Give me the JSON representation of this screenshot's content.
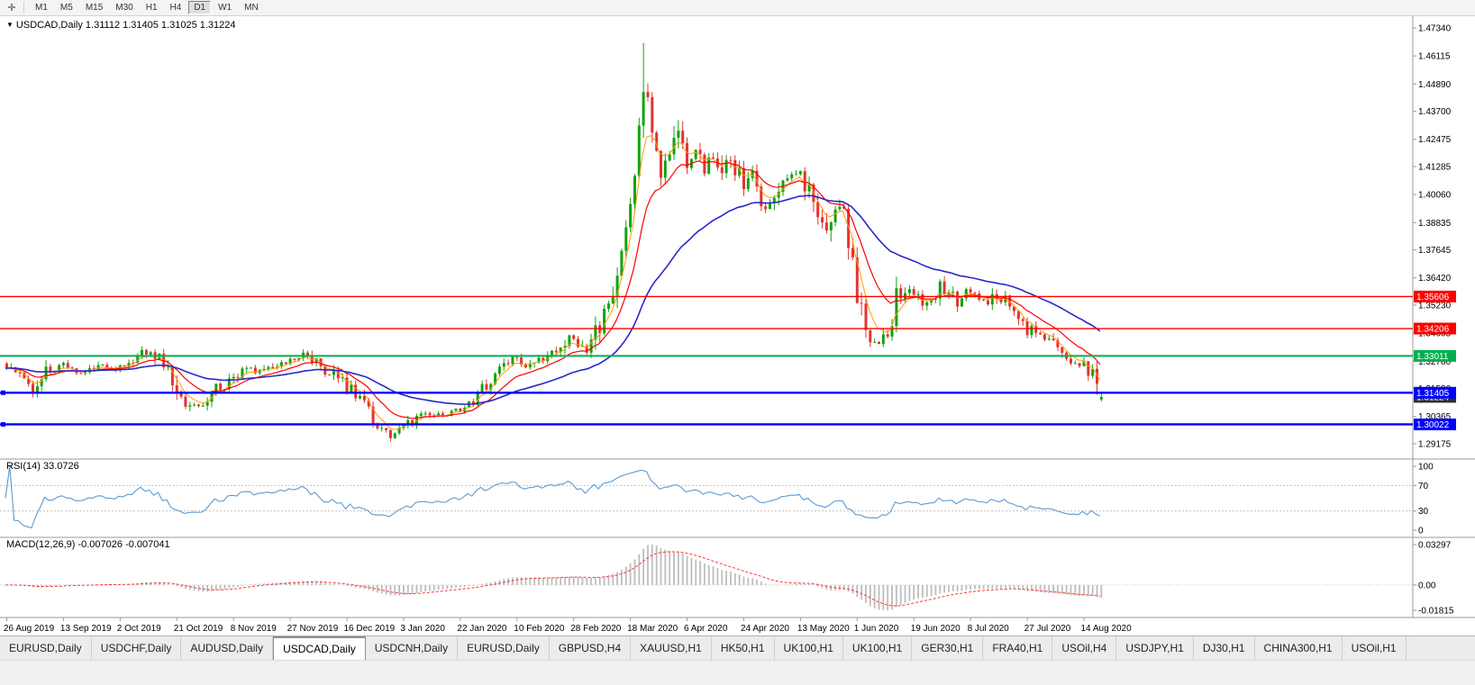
{
  "colors": {
    "candle_up": "#0fa30f",
    "candle_down": "#e53232",
    "ma_fast": "#ff9c00",
    "ma_mid": "#ff0000",
    "ma_slow": "#2929c8",
    "rsi_line": "#5a9bd4",
    "macd_hist": "#bdbdbd",
    "macd_signal": "#ff3333",
    "level_red": "#ff0000",
    "level_green": "#00b050",
    "level_blue": "#0000ff",
    "current_badge": "#2f2f2f",
    "axis_text": "#000000",
    "grid_dash": "#b8b8b8",
    "panel_border": "#9a9a9a"
  },
  "toolbar": {
    "icon": {
      "name": "crosshair-tool-icon",
      "glyph": "✛"
    },
    "timeframes": [
      "M1",
      "M5",
      "M15",
      "M30",
      "H1",
      "H4",
      "D1",
      "W1",
      "MN"
    ],
    "active_timeframe": "D1"
  },
  "info_line": {
    "marker": "▼",
    "text": "USDCAD,Daily 1.31112 1.31405 1.31025 1.31224"
  },
  "rsi_panel": {
    "label": "RSI(14) 33.0726",
    "axis": [
      "100",
      "70",
      "30",
      "0"
    ]
  },
  "macd_panel": {
    "label": "MACD(12,26,9) -0.007026 -0.007041",
    "axis": [
      "0.03297",
      "0.00",
      "-0.01815"
    ]
  },
  "tabs": {
    "items": [
      "EURUSD,Daily",
      "USDCHF,Daily",
      "AUDUSD,Daily",
      "USDCAD,Daily",
      "USDCNH,Daily",
      "EURUSD,Daily",
      "GBPUSD,H4",
      "XAUUSD,H1",
      "HK50,H1",
      "UK100,H1",
      "UK100,H1",
      "GER30,H1",
      "FRA40,H1",
      "USOil,H4",
      "USDJPY,H1",
      "DJ30,H1",
      "CHINA300,H1",
      "USOil,H1"
    ],
    "active_index": 3
  },
  "chart_data": {
    "type": "candlestick",
    "symbol": "USDCAD",
    "timeframe": "Daily",
    "last_candle": {
      "open": 1.31112,
      "high": 1.31405,
      "low": 1.31025,
      "close": 1.31224
    },
    "y_range": {
      "max": 1.4734,
      "min": 1.29175
    },
    "price_axis_labels": [
      "1.47340",
      "1.46115",
      "1.44890",
      "1.43700",
      "1.42475",
      "1.41285",
      "1.40060",
      "1.38835",
      "1.37645",
      "1.36420",
      "1.35230",
      "1.34005",
      "1.32780",
      "1.31590",
      "1.30365",
      "1.29175"
    ],
    "date_labels": [
      "26 Aug 2019",
      "13 Sep 2019",
      "2 Oct 2019",
      "21 Oct 2019",
      "8 Nov 2019",
      "27 Nov 2019",
      "16 Dec 2019",
      "3 Jan 2020",
      "22 Jan 2020",
      "10 Feb 2020",
      "28 Feb 2020",
      "18 Mar 2020",
      "6 Apr 2020",
      "24 Apr 2020",
      "13 May 2020",
      "1 Jun 2020",
      "19 Jun 2020",
      "8 Jul 2020",
      "27 Jul 2020",
      "14 Aug 2020"
    ],
    "bars_per_label": 13,
    "candles_count": 252,
    "seed": 20200814,
    "spike_index": 146,
    "spike_high": 1.4668,
    "price_anchors": [
      [
        0,
        1.3245
      ],
      [
        3,
        1.321
      ],
      [
        6,
        1.3165
      ],
      [
        9,
        1.323
      ],
      [
        13,
        1.3255
      ],
      [
        17,
        1.3235
      ],
      [
        21,
        1.327
      ],
      [
        26,
        1.325
      ],
      [
        30,
        1.33
      ],
      [
        33,
        1.333
      ],
      [
        36,
        1.325
      ],
      [
        39,
        1.312
      ],
      [
        42,
        1.308
      ],
      [
        45,
        1.309
      ],
      [
        48,
        1.315
      ],
      [
        52,
        1.321
      ],
      [
        55,
        1.325
      ],
      [
        58,
        1.323
      ],
      [
        62,
        1.327
      ],
      [
        65,
        1.3285
      ],
      [
        68,
        1.331
      ],
      [
        71,
        1.327
      ],
      [
        74,
        1.323
      ],
      [
        78,
        1.3165
      ],
      [
        81,
        1.311
      ],
      [
        84,
        1.303
      ],
      [
        86,
        1.2975
      ],
      [
        88,
        1.2958
      ],
      [
        91,
        1.299
      ],
      [
        94,
        1.3025
      ],
      [
        97,
        1.305
      ],
      [
        100,
        1.304
      ],
      [
        104,
        1.3065
      ],
      [
        107,
        1.311
      ],
      [
        110,
        1.317
      ],
      [
        113,
        1.323
      ],
      [
        117,
        1.329
      ],
      [
        120,
        1.326
      ],
      [
        123,
        1.329
      ],
      [
        126,
        1.332
      ],
      [
        129,
        1.3385
      ],
      [
        131,
        1.336
      ],
      [
        133,
        1.332
      ],
      [
        135,
        1.3395
      ],
      [
        137,
        1.348
      ],
      [
        139,
        1.357
      ],
      [
        141,
        1.372
      ],
      [
        143,
        1.396
      ],
      [
        144,
        1.408
      ],
      [
        145,
        1.435
      ],
      [
        146,
        1.45
      ],
      [
        147,
        1.442
      ],
      [
        148,
        1.425
      ],
      [
        150,
        1.406
      ],
      [
        152,
        1.418
      ],
      [
        153,
        1.43
      ],
      [
        155,
        1.422
      ],
      [
        156,
        1.416
      ],
      [
        158,
        1.419
      ],
      [
        160,
        1.413
      ],
      [
        162,
        1.418
      ],
      [
        164,
        1.409
      ],
      [
        166,
        1.415
      ],
      [
        169,
        1.406
      ],
      [
        171,
        1.41
      ],
      [
        173,
        1.399
      ],
      [
        175,
        1.395
      ],
      [
        177,
        1.402
      ],
      [
        179,
        1.408
      ],
      [
        182,
        1.411
      ],
      [
        184,
        1.402
      ],
      [
        186,
        1.393
      ],
      [
        188,
        1.386
      ],
      [
        190,
        1.398
      ],
      [
        192,
        1.39
      ],
      [
        194,
        1.368
      ],
      [
        196,
        1.348
      ],
      [
        198,
        1.34
      ],
      [
        200,
        1.337
      ],
      [
        202,
        1.342
      ],
      [
        204,
        1.356
      ],
      [
        206,
        1.361
      ],
      [
        208,
        1.357
      ],
      [
        210,
        1.353
      ],
      [
        212,
        1.356
      ],
      [
        214,
        1.362
      ],
      [
        216,
        1.358
      ],
      [
        218,
        1.3545
      ],
      [
        221,
        1.359
      ],
      [
        223,
        1.356
      ],
      [
        225,
        1.3535
      ],
      [
        227,
        1.3575
      ],
      [
        229,
        1.3545
      ],
      [
        231,
        1.351
      ],
      [
        234,
        1.343
      ],
      [
        236,
        1.34
      ],
      [
        238,
        1.3385
      ],
      [
        240,
        1.3345
      ],
      [
        242,
        1.331
      ],
      [
        244,
        1.3285
      ],
      [
        246,
        1.327
      ],
      [
        247,
        1.326
      ],
      [
        249,
        1.321
      ],
      [
        250,
        1.316
      ],
      [
        251,
        1.31224
      ]
    ],
    "overlays": [
      {
        "name": "ma-fast",
        "type": "ema",
        "period": 5,
        "color_key": "ma_fast",
        "width": 1
      },
      {
        "name": "ma-mid",
        "type": "ema",
        "period": 13,
        "color_key": "ma_mid",
        "width": 1.2
      },
      {
        "name": "ma-slow",
        "type": "ema",
        "period": 40,
        "color_key": "ma_slow",
        "width": 1.6
      }
    ],
    "levels": [
      {
        "price": 1.35606,
        "label": "1.35606",
        "color_key": "level_red",
        "width": 1.4,
        "handle": false
      },
      {
        "price": 1.34206,
        "label": "1.34206",
        "color_key": "level_red",
        "width": 1.4,
        "handle": false
      },
      {
        "price": 1.33011,
        "label": "1.33011",
        "color_key": "level_green",
        "width": 2,
        "handle": false
      },
      {
        "price": 1.31405,
        "label": "1.31405",
        "color_key": "level_blue",
        "width": 2.4,
        "handle": true
      },
      {
        "price": 1.30022,
        "label": "1.30022",
        "color_key": "level_blue",
        "width": 2.4,
        "handle": true
      }
    ],
    "current_price_label": "1.31224",
    "indicators": [
      {
        "name": "RSI",
        "period": 14,
        "current": 33.0726,
        "range": [
          0,
          100
        ],
        "guide_levels": [
          70,
          30
        ]
      },
      {
        "name": "MACD",
        "fast": 12,
        "slow": 26,
        "signal": 9,
        "current_macd": -0.007026,
        "current_signal": -0.007041
      }
    ]
  }
}
